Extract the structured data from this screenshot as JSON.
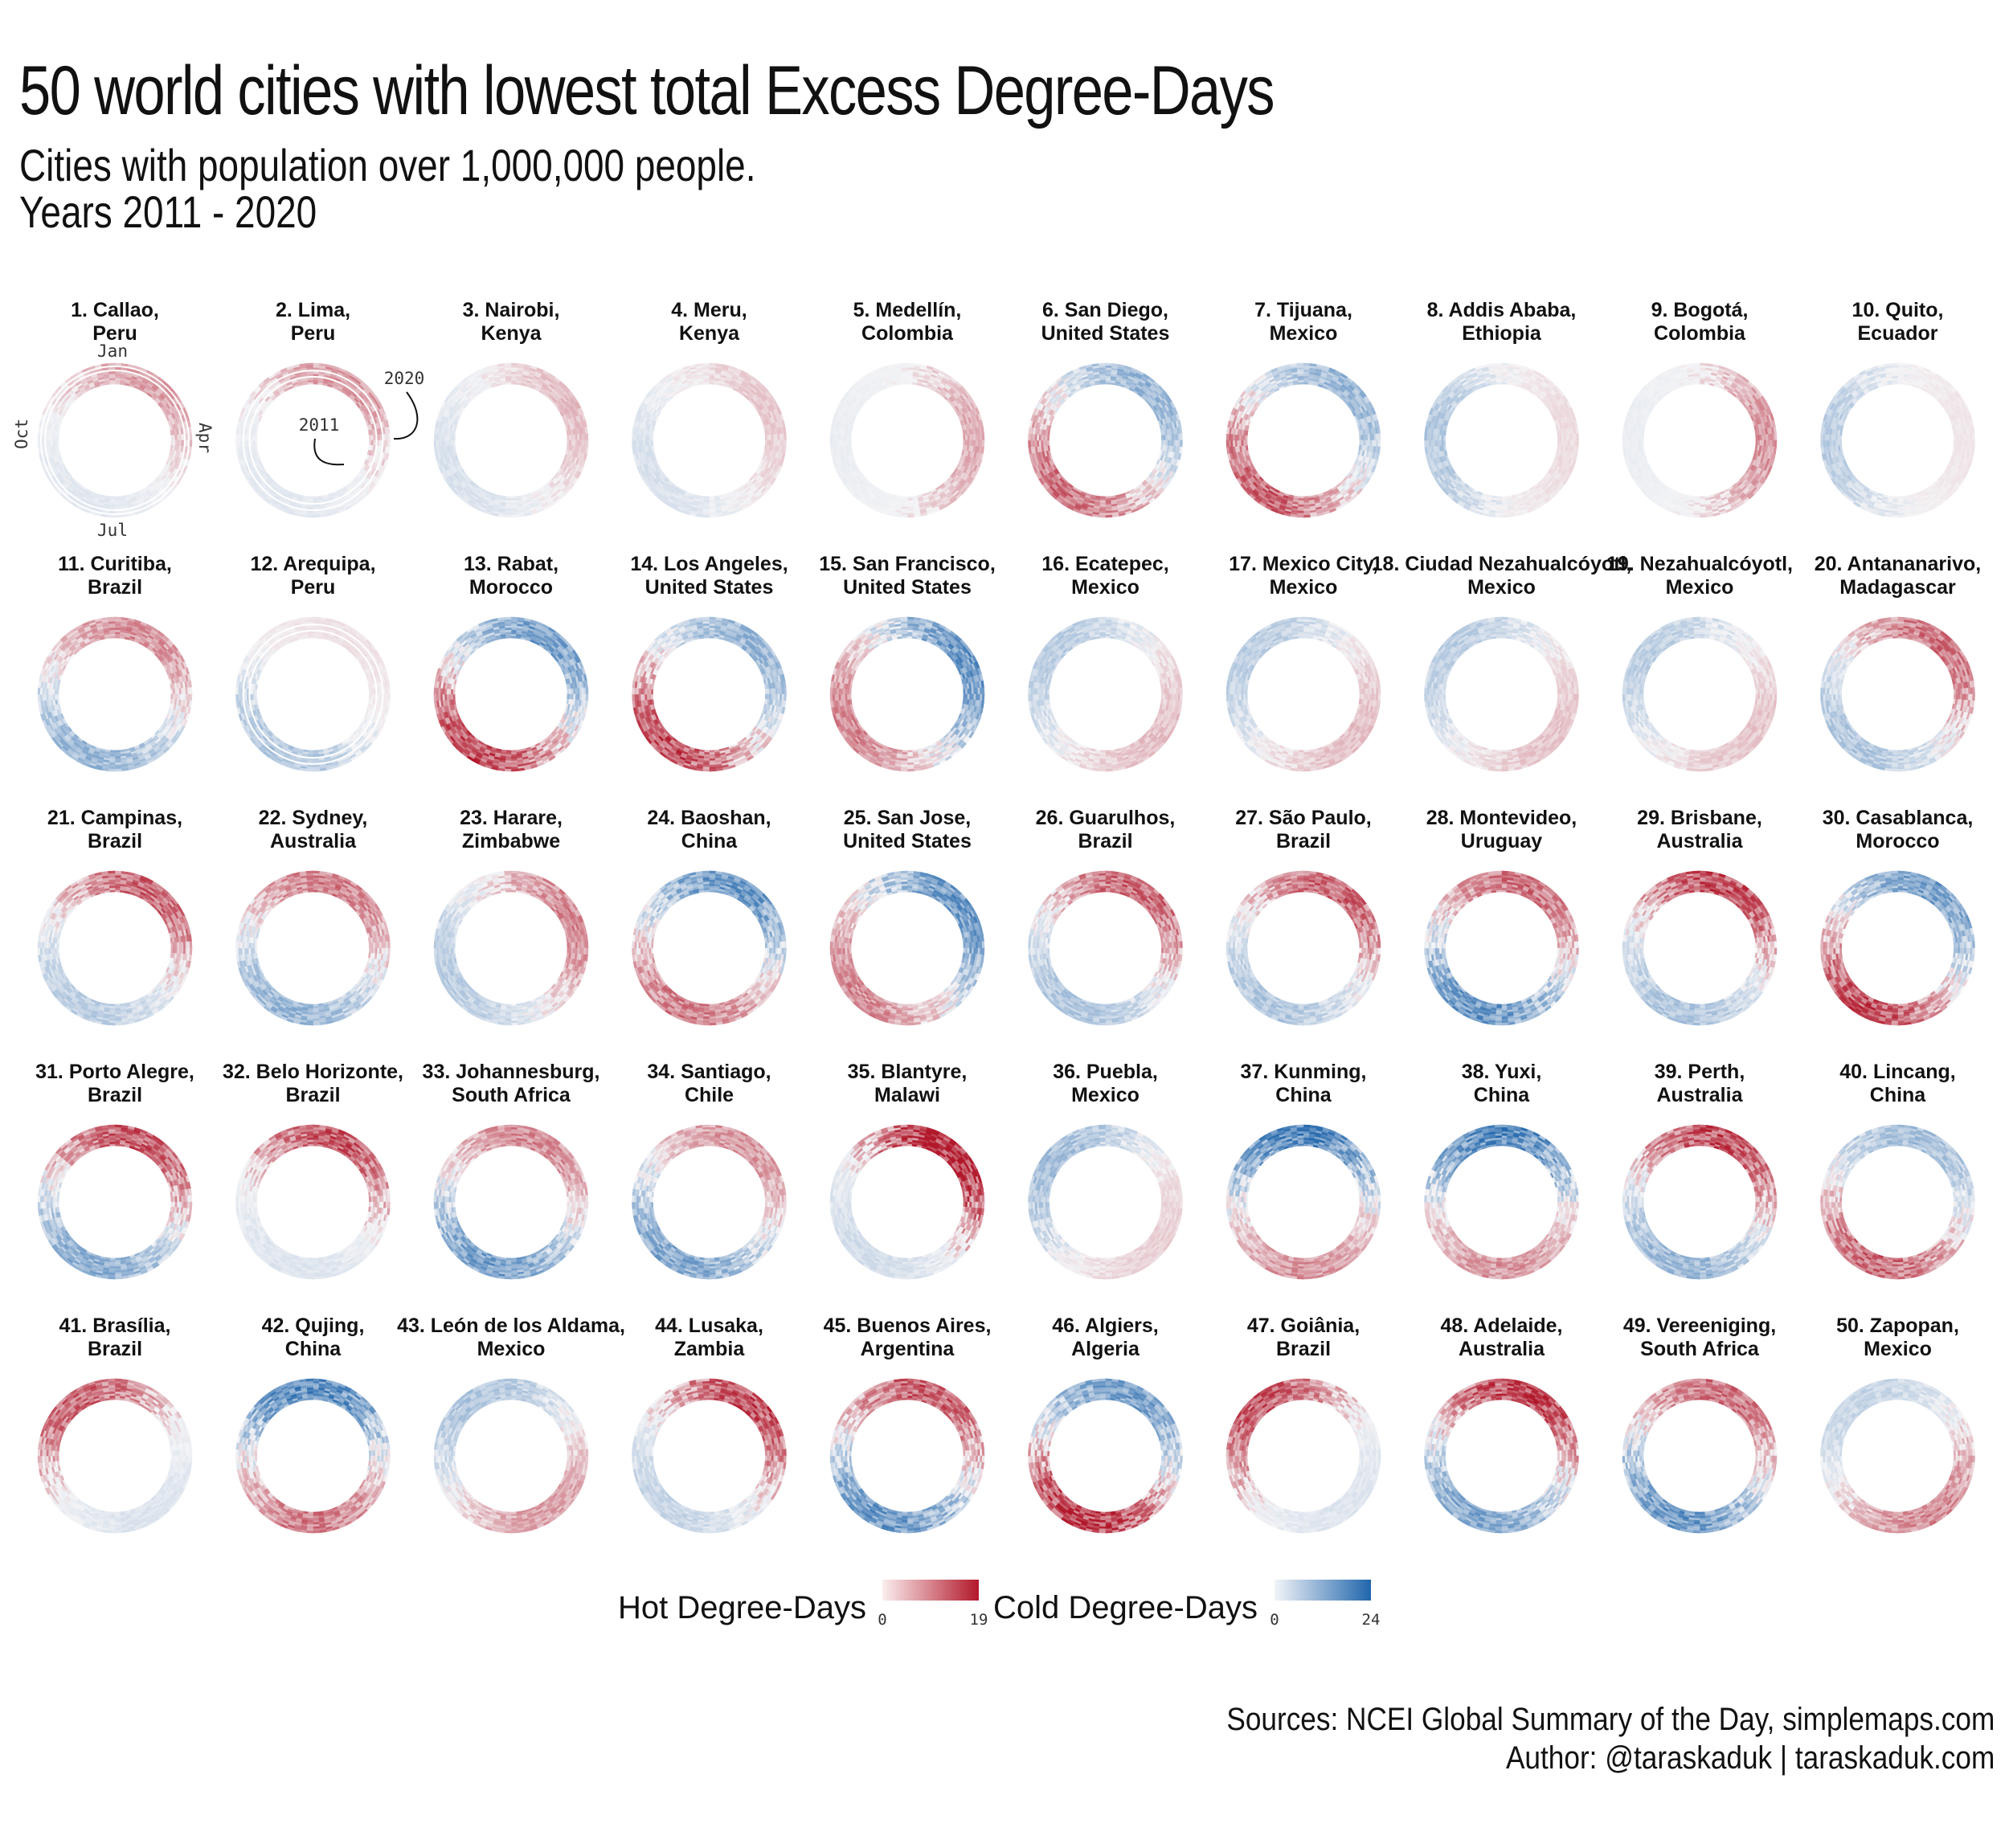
{
  "title": "50 world cities with lowest total Excess Degree-Days",
  "subtitle_line1": "Cities with population over 1,000,000 people.",
  "subtitle_line2": "Years 2011 - 2020",
  "source_line1": "Sources: NCEI Global Summary of the Day, simplemaps.com",
  "source_line2": "Author: @taraskaduk | taraskaduk.com",
  "colors": {
    "hot": "#b2182b",
    "cold": "#2166ac",
    "neutral": "#f4f4f6"
  },
  "chart_data": {
    "type": "heatmap",
    "layout": "polar small multiples (ring per city: angle = day of year, radius = year 2011-2020)",
    "axis_months": {
      "top": "Jan",
      "right": "Apr",
      "bottom": "Jul",
      "left": "Oct"
    },
    "year_labels": {
      "inner": "2011",
      "outer": "2020"
    },
    "cities": [
      {
        "rank": 1,
        "line1": "1. Callao,",
        "line2": "Peru",
        "hot": 0.35,
        "cold": 0.08,
        "hot_angle": 30,
        "gaps": [
          6,
          8
        ]
      },
      {
        "rank": 2,
        "line1": "2. Lima,",
        "line2": "Peru",
        "hot": 0.38,
        "cold": 0.08,
        "hot_angle": 30,
        "gaps": [
          3,
          6
        ]
      },
      {
        "rank": 3,
        "line1": "3. Nairobi,",
        "line2": "Kenya",
        "hot": 0.22,
        "cold": 0.12,
        "hot_angle": 60
      },
      {
        "rank": 4,
        "line1": "4. Meru,",
        "line2": "Kenya",
        "hot": 0.18,
        "cold": 0.12,
        "hot_angle": 60
      },
      {
        "rank": 5,
        "line1": "5. Medellín,",
        "line2": "Colombia",
        "hot": 0.3,
        "cold": 0.04,
        "hot_angle": 90
      },
      {
        "rank": 6,
        "line1": "6. San Diego,",
        "line2": "United States",
        "hot": 0.55,
        "cold": 0.4,
        "hot_angle": 220
      },
      {
        "rank": 7,
        "line1": "7. Tijuana,",
        "line2": "Mexico",
        "hot": 0.6,
        "cold": 0.4,
        "hot_angle": 220
      },
      {
        "rank": 8,
        "line1": "8. Addis Ababa,",
        "line2": "Ethiopia",
        "hot": 0.1,
        "cold": 0.28,
        "hot_angle": 90
      },
      {
        "rank": 9,
        "line1": "9. Bogotá,",
        "line2": "Colombia",
        "hot": 0.4,
        "cold": 0.04,
        "hot_angle": 90
      },
      {
        "rank": 10,
        "line1": "10. Quito,",
        "line2": "Ecuador",
        "hot": 0.06,
        "cold": 0.25,
        "hot_angle": 90
      },
      {
        "rank": 11,
        "line1": "11. Curitiba,",
        "line2": "Brazil",
        "hot": 0.42,
        "cold": 0.4,
        "hot_angle": 20
      },
      {
        "rank": 12,
        "line1": "12. Arequipa,",
        "line2": "Peru",
        "hot": 0.08,
        "cold": 0.3,
        "hot_angle": 30,
        "gaps": [
          3,
          6
        ]
      },
      {
        "rank": 13,
        "line1": "13. Rabat,",
        "line2": "Morocco",
        "hot": 0.7,
        "cold": 0.55,
        "hot_angle": 210
      },
      {
        "rank": 14,
        "line1": "14. Los Angeles,",
        "line2": "United States",
        "hot": 0.7,
        "cold": 0.4,
        "hot_angle": 220
      },
      {
        "rank": 15,
        "line1": "15. San Francisco,",
        "line2": "United States",
        "hot": 0.45,
        "cold": 0.6,
        "hot_angle": 240
      },
      {
        "rank": 16,
        "line1": "16. Ecatepec,",
        "line2": "Mexico",
        "hot": 0.22,
        "cold": 0.25,
        "hot_angle": 130
      },
      {
        "rank": 17,
        "line1": "17. Mexico City,",
        "line2": "Mexico",
        "hot": 0.22,
        "cold": 0.25,
        "hot_angle": 130
      },
      {
        "rank": 18,
        "line1": "18. Ciudad Nezahualcóyotl,",
        "line2": "Mexico",
        "hot": 0.2,
        "cold": 0.25,
        "hot_angle": 130
      },
      {
        "rank": 19,
        "line1": "19. Nezahualcóyotl,",
        "line2": "Mexico",
        "hot": 0.2,
        "cold": 0.25,
        "hot_angle": 130
      },
      {
        "rank": 20,
        "line1": "20. Antananarivo,",
        "line2": "Madagascar",
        "hot": 0.55,
        "cold": 0.3,
        "hot_angle": 40
      },
      {
        "rank": 21,
        "line1": "21. Campinas,",
        "line2": "Brazil",
        "hot": 0.6,
        "cold": 0.25,
        "hot_angle": 30
      },
      {
        "rank": 22,
        "line1": "22. Sydney,",
        "line2": "Australia",
        "hot": 0.5,
        "cold": 0.4,
        "hot_angle": 20
      },
      {
        "rank": 23,
        "line1": "23. Harare,",
        "line2": "Zimbabwe",
        "hot": 0.45,
        "cold": 0.25,
        "hot_angle": 60
      },
      {
        "rank": 24,
        "line1": "24. Baoshan,",
        "line2": "China",
        "hot": 0.5,
        "cold": 0.6,
        "hot_angle": 200
      },
      {
        "rank": 25,
        "line1": "25. San Jose,",
        "line2": "United States",
        "hot": 0.45,
        "cold": 0.6,
        "hot_angle": 230
      },
      {
        "rank": 26,
        "line1": "26. Guarulhos,",
        "line2": "Brazil",
        "hot": 0.6,
        "cold": 0.3,
        "hot_angle": 30
      },
      {
        "rank": 27,
        "line1": "27. São Paulo,",
        "line2": "Brazil",
        "hot": 0.6,
        "cold": 0.3,
        "hot_angle": 30
      },
      {
        "rank": 28,
        "line1": "28. Montevideo,",
        "line2": "Uruguay",
        "hot": 0.55,
        "cold": 0.6,
        "hot_angle": 20
      },
      {
        "rank": 29,
        "line1": "29. Brisbane,",
        "line2": "Australia",
        "hot": 0.7,
        "cold": 0.3,
        "hot_angle": 20
      },
      {
        "rank": 30,
        "line1": "30. Casablanca,",
        "line2": "Morocco",
        "hot": 0.7,
        "cold": 0.55,
        "hot_angle": 210
      },
      {
        "rank": 31,
        "line1": "31. Porto Alegre,",
        "line2": "Brazil",
        "hot": 0.65,
        "cold": 0.45,
        "hot_angle": 20
      },
      {
        "rank": 32,
        "line1": "32. Belo Horizonte,",
        "line2": "Brazil",
        "hot": 0.65,
        "cold": 0.1,
        "hot_angle": 20
      },
      {
        "rank": 33,
        "line1": "33. Johannesburg,",
        "line2": "South Africa",
        "hot": 0.45,
        "cold": 0.55,
        "hot_angle": 20
      },
      {
        "rank": 34,
        "line1": "34. Santiago,",
        "line2": "Chile",
        "hot": 0.4,
        "cold": 0.5,
        "hot_angle": 30
      },
      {
        "rank": 35,
        "line1": "35. Blantyre,",
        "line2": "Malawi",
        "hot": 0.9,
        "cold": 0.15,
        "hot_angle": 40
      },
      {
        "rank": 36,
        "line1": "36. Puebla,",
        "line2": "Mexico",
        "hot": 0.15,
        "cold": 0.35,
        "hot_angle": 130
      },
      {
        "rank": 37,
        "line1": "37. Kunming,",
        "line2": "China",
        "hot": 0.4,
        "cold": 0.7,
        "hot_angle": 180
      },
      {
        "rank": 38,
        "line1": "38. Yuxi,",
        "line2": "China",
        "hot": 0.4,
        "cold": 0.7,
        "hot_angle": 180
      },
      {
        "rank": 39,
        "line1": "39. Perth,",
        "line2": "Australia",
        "hot": 0.7,
        "cold": 0.4,
        "hot_angle": 20
      },
      {
        "rank": 40,
        "line1": "40. Lincang,",
        "line2": "China",
        "hot": 0.6,
        "cold": 0.35,
        "hot_angle": 200
      },
      {
        "rank": 41,
        "line1": "41. Brasília,",
        "line2": "Brazil",
        "hot": 0.6,
        "cold": 0.1,
        "hot_angle": 330
      },
      {
        "rank": 42,
        "line1": "42. Qujing,",
        "line2": "China",
        "hot": 0.5,
        "cold": 0.7,
        "hot_angle": 180
      },
      {
        "rank": 43,
        "line1": "43. León de los Aldama,",
        "line2": "Mexico",
        "hot": 0.35,
        "cold": 0.3,
        "hot_angle": 150
      },
      {
        "rank": 44,
        "line1": "44. Lusaka,",
        "line2": "Zambia",
        "hot": 0.7,
        "cold": 0.2,
        "hot_angle": 40
      },
      {
        "rank": 45,
        "line1": "45. Buenos Aires,",
        "line2": "Argentina",
        "hot": 0.65,
        "cold": 0.6,
        "hot_angle": 20
      },
      {
        "rank": 46,
        "line1": "46. Algiers,",
        "line2": "Algeria",
        "hot": 0.8,
        "cold": 0.55,
        "hot_angle": 200
      },
      {
        "rank": 47,
        "line1": "47. Goiânia,",
        "line2": "Brazil",
        "hot": 0.65,
        "cold": 0.1,
        "hot_angle": 320
      },
      {
        "rank": 48,
        "line1": "48. Adelaide,",
        "line2": "Australia",
        "hot": 0.75,
        "cold": 0.5,
        "hot_angle": 20
      },
      {
        "rank": 49,
        "line1": "49. Vereeniging,",
        "line2": "South Africa",
        "hot": 0.55,
        "cold": 0.6,
        "hot_angle": 20
      },
      {
        "rank": 50,
        "line1": "50. Zapopan,",
        "line2": "Mexico",
        "hot": 0.45,
        "cold": 0.2,
        "hot_angle": 150
      }
    ],
    "legend": {
      "hot_title": "Hot Degree-Days",
      "hot_min": "0",
      "hot_max": "19",
      "cold_title": "Cold Degree-Days",
      "cold_min": "0",
      "cold_max": "24"
    }
  }
}
